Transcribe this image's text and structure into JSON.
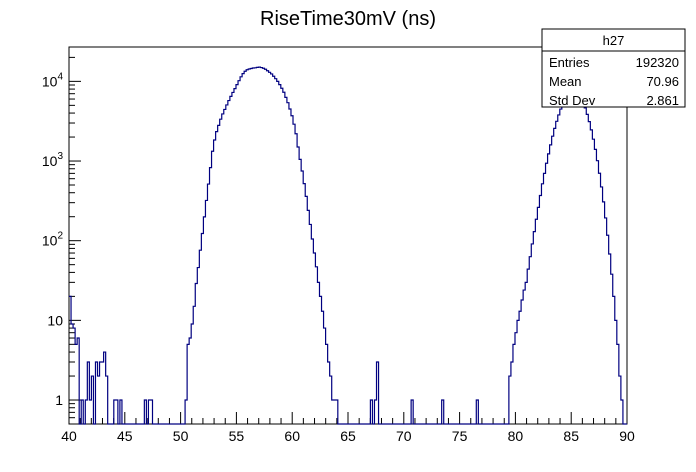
{
  "chart_data": {
    "type": "histogram",
    "title": "RiseTime30mV (ns)",
    "xlabel": "",
    "ylabel": "",
    "xlim": [
      40,
      90
    ],
    "ylim": [
      0.5,
      27000
    ],
    "y_scale": "log",
    "bin_width": 0.5,
    "x_ticks": [
      40,
      45,
      50,
      55,
      60,
      65,
      70,
      75,
      80,
      85,
      90
    ],
    "y_ticks": [
      {
        "value": 1,
        "label": "1"
      },
      {
        "value": 10,
        "label": "10"
      },
      {
        "value": 100,
        "label": "10",
        "exp": "2"
      },
      {
        "value": 1000,
        "label": "10",
        "exp": "3"
      },
      {
        "value": 10000,
        "label": "10",
        "exp": "4"
      }
    ],
    "line_color": "#000080",
    "counts": [
      20,
      9,
      8,
      5,
      6,
      0,
      1,
      0,
      1,
      3,
      1,
      2,
      0,
      3,
      2,
      3,
      3,
      4,
      2,
      0,
      0,
      0,
      1,
      1,
      0,
      1,
      0,
      0,
      0,
      0,
      0,
      0,
      0,
      0,
      0,
      0,
      0,
      1,
      0,
      1,
      1,
      0,
      0,
      0,
      0,
      0,
      0,
      0,
      0,
      0,
      0,
      0,
      0,
      0,
      0,
      0,
      0,
      1,
      5,
      6,
      9,
      15,
      29,
      46,
      76,
      123,
      199,
      320,
      514,
      826,
      1327,
      1835,
      2340,
      2800,
      3350,
      3900,
      4445,
      5060,
      5740,
      6480,
      7260,
      8100,
      9100,
      10200,
      11400,
      12500,
      13400,
      14000,
      14300,
      14500,
      14700,
      14800,
      15000,
      15100,
      14900,
      14600,
      14200,
      13600,
      13000,
      12400,
      11600,
      10800,
      10000,
      9100,
      8200,
      7300,
      6300,
      5400,
      4500,
      3700,
      2900,
      2200,
      1500,
      1050,
      750,
      520,
      360,
      240,
      160,
      105,
      70,
      47,
      30,
      20,
      13,
      8,
      5,
      3,
      2,
      1,
      1,
      1,
      0,
      0,
      0,
      0,
      0,
      0,
      0,
      0,
      0,
      0,
      0,
      0,
      0,
      0,
      0,
      0,
      1,
      0,
      1,
      3,
      0,
      0,
      0,
      0,
      0,
      0,
      0,
      0,
      0,
      0,
      0,
      0,
      0,
      0,
      0,
      0,
      1,
      0,
      0,
      0,
      0,
      0,
      0,
      0,
      0,
      0,
      0,
      0,
      0,
      0,
      0,
      1,
      0,
      0,
      0,
      0,
      0,
      0,
      0,
      0,
      0,
      0,
      0,
      0,
      0,
      0,
      0,
      0,
      1,
      0,
      0,
      0,
      0,
      0,
      0,
      0,
      0,
      0,
      0,
      0,
      0,
      0,
      0,
      0,
      2,
      3,
      5,
      7,
      10,
      13,
      18,
      24,
      30,
      44,
      63,
      91,
      130,
      186,
      262,
      369,
      518,
      700,
      938,
      1230,
      1596,
      2050,
      2570,
      3150,
      3790,
      4490,
      5200,
      5890,
      6520,
      7050,
      7430,
      7600,
      7540,
      7270,
      6790,
      6150,
      5430,
      4640,
      3850,
      3120,
      2460,
      1880,
      1400,
      1010,
      703,
      473,
      307,
      193,
      117,
      68,
      38,
      20,
      10,
      5,
      2,
      1,
      0,
      0
    ],
    "stats_box": {
      "name": "h27",
      "rows": [
        {
          "label": "Entries",
          "value": "192320"
        },
        {
          "label": "Mean",
          "value": "70.96"
        },
        {
          "label": "Std Dev",
          "value": "2.861"
        }
      ]
    }
  }
}
